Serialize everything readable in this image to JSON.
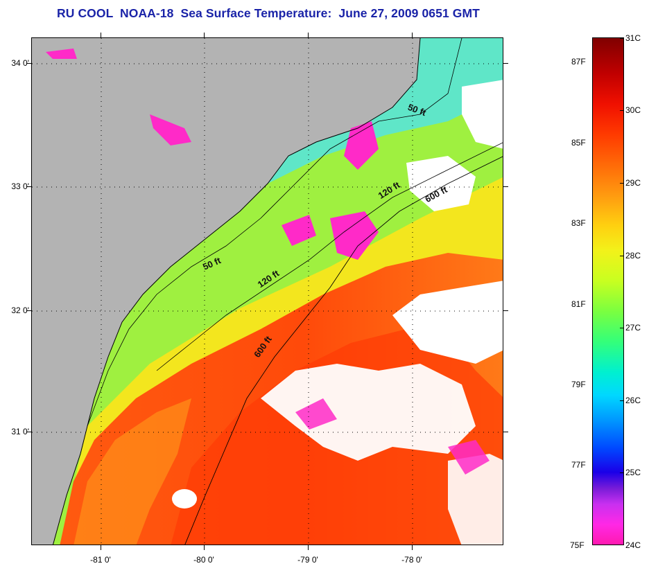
{
  "title": "RU COOL  NOAA-18  Sea Surface Temperature:  June 27, 2009 0651 GMT",
  "axes": {
    "lat_labels": [
      "34 0'",
      "33 0'",
      "32 0'",
      "31 0'"
    ],
    "lon_labels": [
      "-81 0'",
      "-80 0'",
      "-79 0'",
      "-78 0'"
    ]
  },
  "contours": {
    "labels": [
      "50 ft",
      "120 ft",
      "600 ft",
      "50 ft",
      "120 ft",
      "600 ft"
    ]
  },
  "colorbar": {
    "celsius": [
      "31C",
      "30C",
      "29C",
      "28C",
      "27C",
      "26C",
      "25C",
      "24C"
    ],
    "fahrenheit": [
      "87F",
      "85F",
      "83F",
      "81F",
      "79F",
      "77F",
      "75F"
    ]
  },
  "colors": {
    "title": "#1a23a8",
    "land": "#b3b3b3",
    "cloud": "#ffffff",
    "cold_anomaly": "#ff1ab0"
  }
}
